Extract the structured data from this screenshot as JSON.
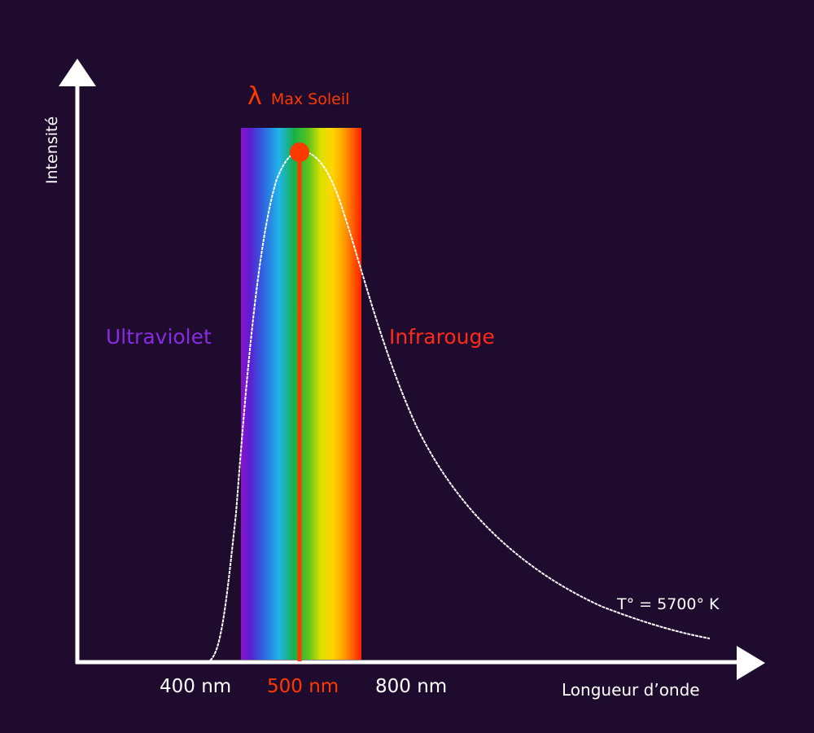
{
  "axes": {
    "y_label": "Intensité",
    "x_label": "Longueur d’onde"
  },
  "peak": {
    "symbol": "λ",
    "label": "Max Soleil"
  },
  "regions": {
    "ultraviolet": "Ultraviolet",
    "infrared": "Infrarouge"
  },
  "temperature_label": "T° = 5700° K",
  "ticks": {
    "t400": "400 nm",
    "t500": "500 nm",
    "t800": "800 nm"
  },
  "colors": {
    "background": "#1e0b2d",
    "axis": "#ffffff",
    "curve": "#ffffff",
    "peak": "#ff3a00",
    "ultraviolet": "#8a2be2",
    "infrared": "#ff2a1a"
  }
}
